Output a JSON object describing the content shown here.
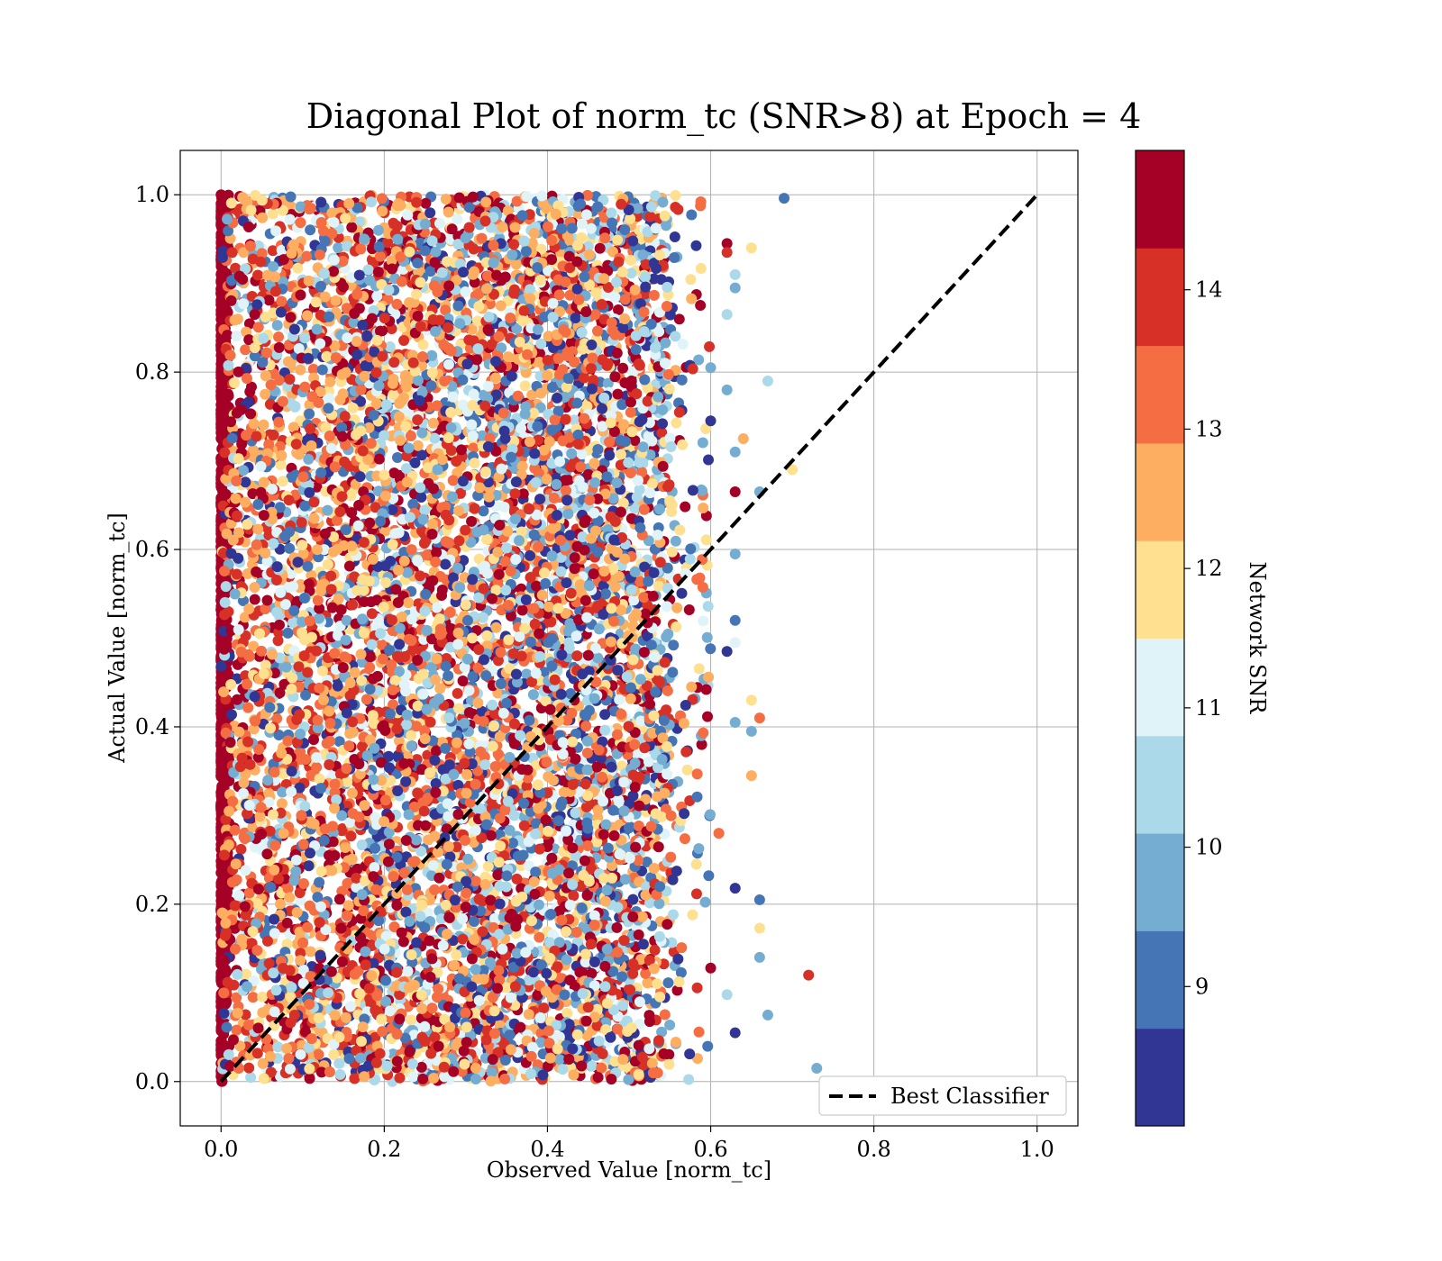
{
  "chart_data": {
    "type": "scatter",
    "title": "Diagonal Plot of norm_tc (SNR>8) at Epoch = 4",
    "xlabel": "Observed Value [norm_tc]",
    "ylabel": "Actual Value [norm_tc]",
    "xlim": [
      -0.05,
      1.05
    ],
    "ylim": [
      -0.05,
      1.05
    ],
    "xticks": [
      0.0,
      0.2,
      0.4,
      0.6,
      0.8,
      1.0
    ],
    "yticks": [
      0.0,
      0.2,
      0.4,
      0.6,
      0.8,
      1.0
    ],
    "x_tick_labels": [
      "0.0",
      "0.2",
      "0.4",
      "0.6",
      "0.8",
      "1.0"
    ],
    "y_tick_labels": [
      "0.0",
      "0.2",
      "0.4",
      "0.6",
      "0.8",
      "1.0"
    ],
    "grid": true,
    "legend": {
      "position": "lower-right",
      "entries": [
        "Best Classifier"
      ]
    },
    "reference_line": {
      "name": "Best Classifier",
      "style": "dashed",
      "color": "#000000",
      "x": [
        0.0,
        1.0
      ],
      "y": [
        0.0,
        1.0
      ]
    },
    "scatter_summary": {
      "color_variable": "Network SNR",
      "x_range": [
        0.0,
        0.73
      ],
      "y_range": [
        0.0,
        1.0
      ],
      "dense_x_max": 0.55,
      "column_at_x0_color": "#a50026",
      "sampled_points": [
        [
          0.69,
          0.996,
          9.0
        ],
        [
          0.62,
          0.945,
          14.5
        ],
        [
          0.62,
          0.935,
          14.0
        ],
        [
          0.65,
          0.94,
          11.5
        ],
        [
          0.63,
          0.91,
          10.5
        ],
        [
          0.63,
          0.895,
          10.0
        ],
        [
          0.67,
          0.79,
          10.5
        ],
        [
          0.62,
          0.865,
          10.5
        ],
        [
          0.6,
          0.805,
          9.5
        ],
        [
          0.62,
          0.78,
          10.0
        ],
        [
          0.6,
          0.745,
          8.5
        ],
        [
          0.64,
          0.725,
          12.5
        ],
        [
          0.63,
          0.71,
          10.0
        ],
        [
          0.66,
          0.665,
          10.0
        ],
        [
          0.63,
          0.665,
          14.5
        ],
        [
          0.7,
          0.69,
          12.0
        ],
        [
          0.63,
          0.595,
          9.5
        ],
        [
          0.63,
          0.52,
          9.0
        ],
        [
          0.62,
          0.485,
          8.5
        ],
        [
          0.63,
          0.495,
          11.0
        ],
        [
          0.65,
          0.43,
          12.0
        ],
        [
          0.66,
          0.41,
          13.0
        ],
        [
          0.63,
          0.405,
          9.5
        ],
        [
          0.65,
          0.395,
          9.5
        ],
        [
          0.65,
          0.345,
          12.5
        ],
        [
          0.61,
          0.28,
          13.5
        ],
        [
          0.63,
          0.218,
          8.5
        ],
        [
          0.66,
          0.205,
          9.0
        ],
        [
          0.66,
          0.173,
          12.0
        ],
        [
          0.66,
          0.14,
          10.0
        ],
        [
          0.72,
          0.12,
          14.0
        ],
        [
          0.62,
          0.098,
          10.5
        ],
        [
          0.67,
          0.075,
          9.5
        ],
        [
          0.73,
          0.015,
          9.5
        ],
        [
          0.63,
          0.055,
          8.5
        ],
        [
          0.6,
          0.128,
          14.5
        ]
      ]
    },
    "colorbar": {
      "label": "Network SNR",
      "min": 8.0,
      "max": 15.0,
      "ticks": [
        9,
        10,
        11,
        12,
        13,
        14
      ],
      "tick_labels": [
        "9",
        "10",
        "11",
        "12",
        "13",
        "14"
      ],
      "bins": [
        {
          "range": [
            8.0,
            8.7
          ],
          "color": "#313695"
        },
        {
          "range": [
            8.7,
            9.4
          ],
          "color": "#4575b4"
        },
        {
          "range": [
            9.4,
            10.1
          ],
          "color": "#74add1"
        },
        {
          "range": [
            10.1,
            10.8
          ],
          "color": "#abd9e9"
        },
        {
          "range": [
            10.8,
            11.5
          ],
          "color": "#e0f3f8"
        },
        {
          "range": [
            11.5,
            12.2
          ],
          "color": "#fee090"
        },
        {
          "range": [
            12.2,
            12.9
          ],
          "color": "#fdae61"
        },
        {
          "range": [
            12.9,
            13.6
          ],
          "color": "#f46d43"
        },
        {
          "range": [
            13.6,
            14.3
          ],
          "color": "#d73027"
        },
        {
          "range": [
            14.3,
            15.0
          ],
          "color": "#a50026"
        }
      ]
    }
  }
}
